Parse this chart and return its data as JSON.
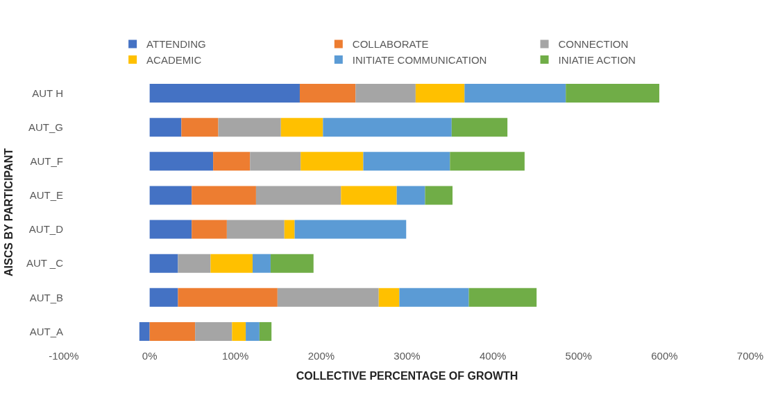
{
  "chart_data": {
    "type": "bar",
    "orientation": "horizontal",
    "stacked": true,
    "xlabel": "COLLECTIVE PERCENTAGE OF GROWTH",
    "ylabel": "AISCS BY PARTICIPANT",
    "categories": [
      "AUT H",
      "AUT_G",
      "AUT_F",
      "AUT_E",
      "AUT_D",
      "AUT _C",
      "AUT_B",
      "AUT_A"
    ],
    "series": [
      {
        "name": "ATTENDING",
        "color": "#4472c4",
        "values": [
          175,
          37,
          74,
          49,
          49,
          33,
          33,
          -12
        ]
      },
      {
        "name": "COLLABORATE",
        "color": "#ed7d31",
        "values": [
          65,
          43,
          43,
          75,
          41,
          0,
          116,
          53
        ]
      },
      {
        "name": "CONNECTION",
        "color": "#a5a5a5",
        "values": [
          70,
          73,
          59,
          99,
          67,
          38,
          118,
          43
        ]
      },
      {
        "name": "ACADEMIC",
        "color": "#ffc000",
        "values": [
          57,
          49,
          73,
          65,
          12,
          49,
          24,
          16
        ]
      },
      {
        "name": "INITIATE COMMUNICATION",
        "color": "#5b9bd5",
        "values": [
          118,
          150,
          101,
          33,
          130,
          21,
          81,
          16
        ]
      },
      {
        "name": "INIATIE ACTION",
        "color": "#70ad47",
        "values": [
          109,
          65,
          87,
          32,
          0,
          50,
          79,
          14
        ]
      }
    ],
    "xlim": [
      -100,
      700
    ],
    "xticks": [
      {
        "value": -100,
        "label": "-100%"
      },
      {
        "value": 0,
        "label": "0%"
      },
      {
        "value": 100,
        "label": "100%"
      },
      {
        "value": 200,
        "label": "200%"
      },
      {
        "value": 300,
        "label": "300%"
      },
      {
        "value": 400,
        "label": "400%"
      },
      {
        "value": 500,
        "label": "500%"
      },
      {
        "value": 600,
        "label": "600%"
      },
      {
        "value": 700,
        "label": "700%"
      }
    ],
    "legend": "top"
  }
}
